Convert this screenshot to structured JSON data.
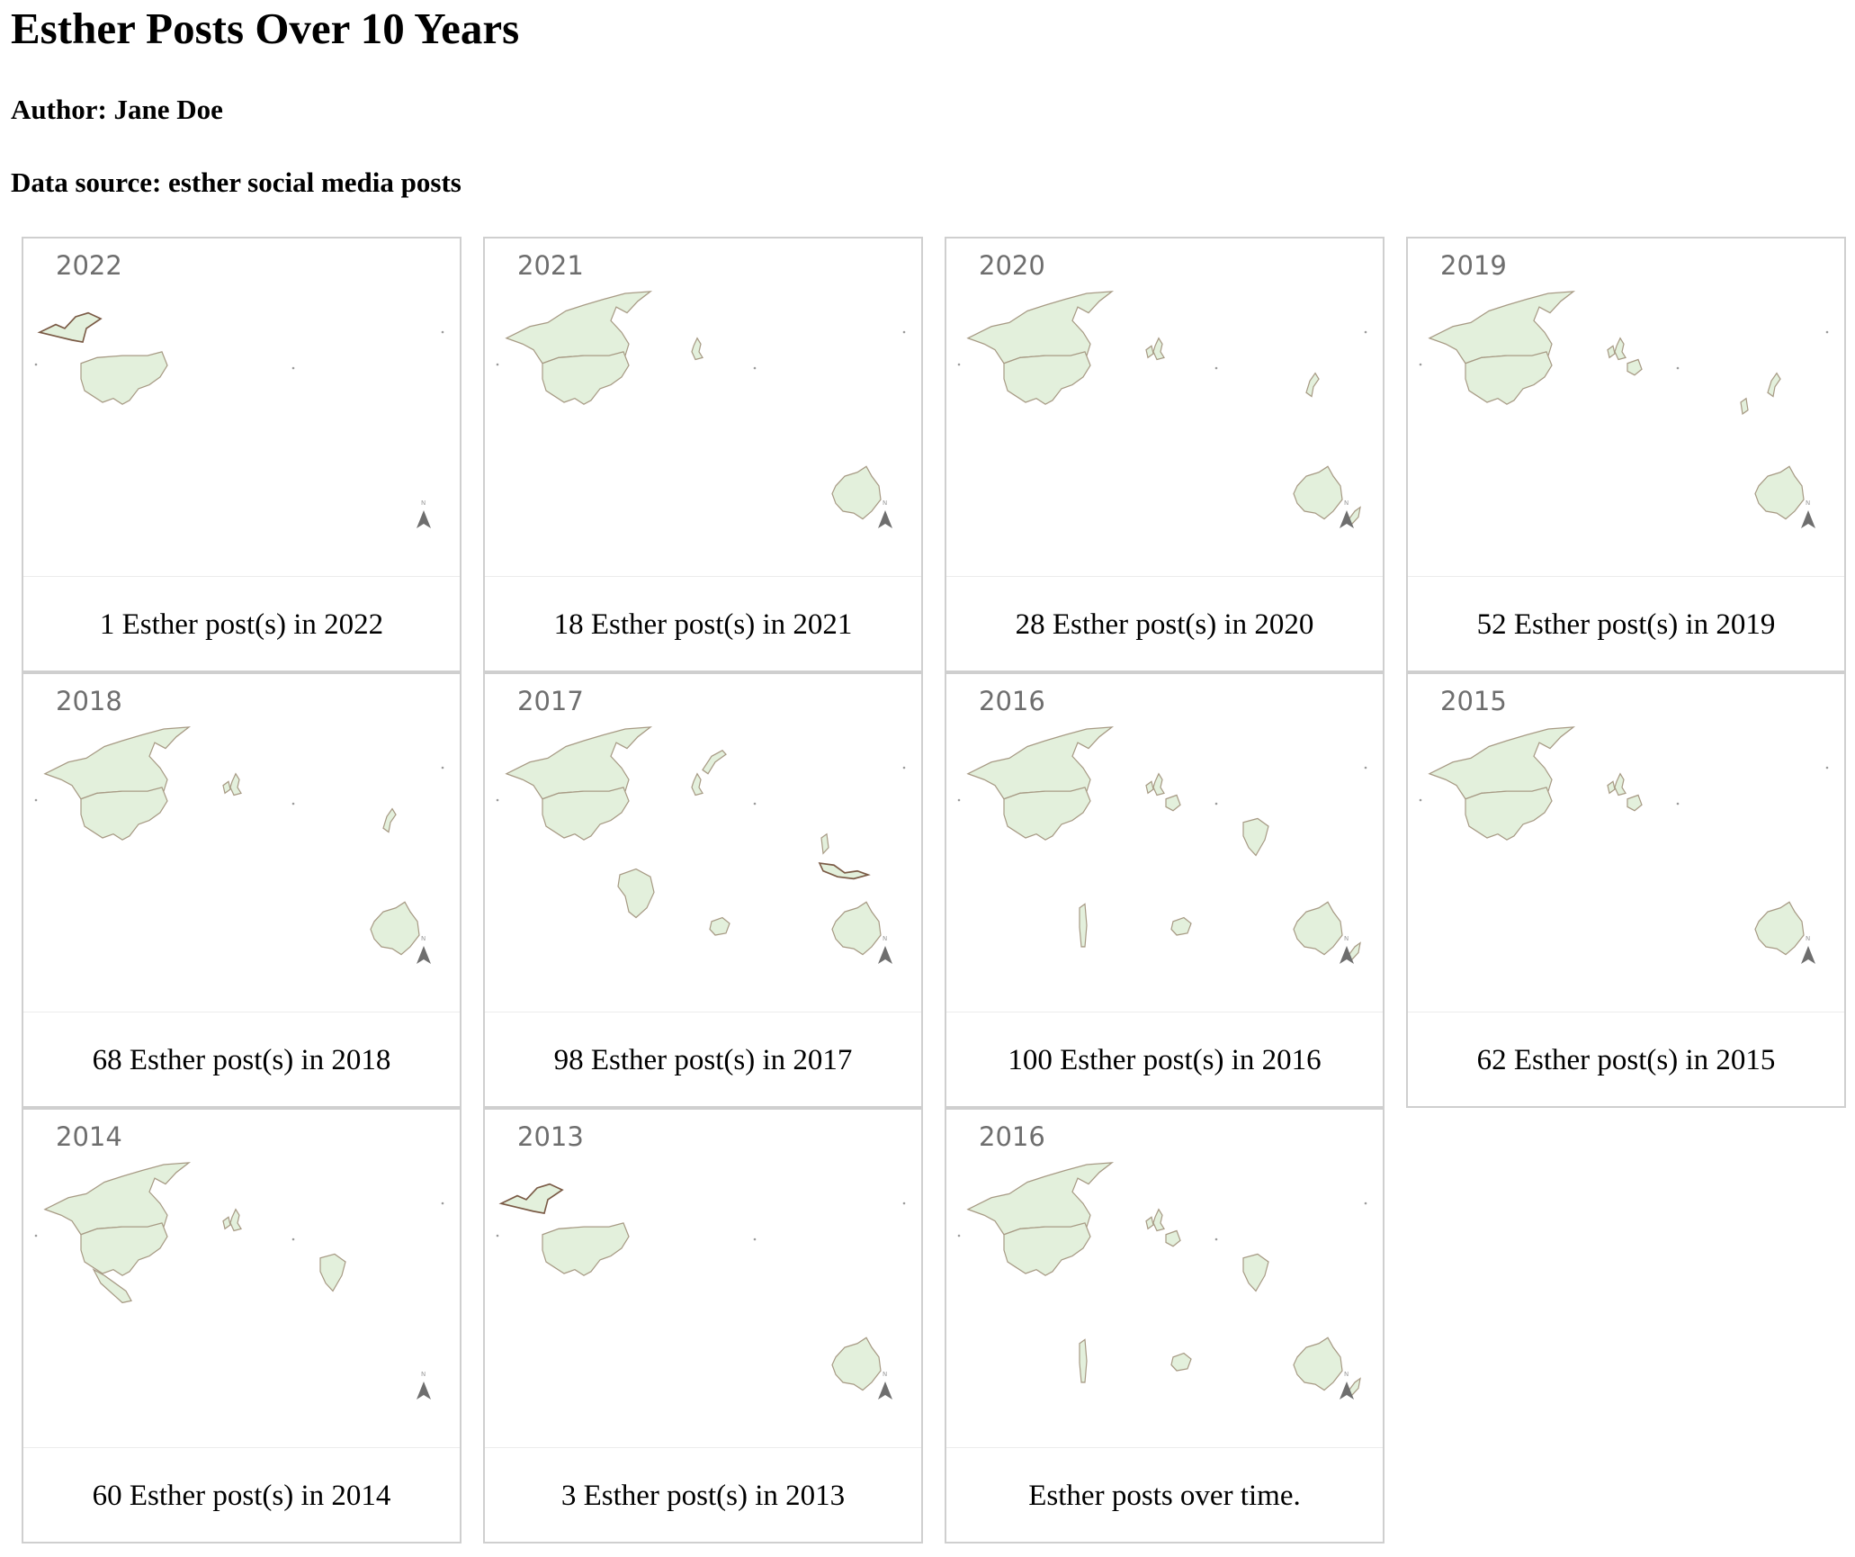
{
  "page": {
    "title": "Esther Posts Over 10 Years",
    "author": "Author: Jane Doe",
    "source": "Data source: esther social media posts"
  },
  "colors": {
    "land_fill": "#e3f0dc",
    "land_outline": "#a79a84",
    "coast_dark": "#7a5a45",
    "year_label": "#6e6e6e",
    "card_border": "#cfcfcf"
  },
  "north_arrow_label": "N",
  "cards": [
    {
      "year": "2022",
      "caption": "1 Esther post(s) in 2022",
      "posts": 1,
      "regions": [
        "Alaska",
        "United States"
      ]
    },
    {
      "year": "2021",
      "caption": "18 Esther post(s) in 2021",
      "posts": 18,
      "regions": [
        "Canada",
        "United States",
        "United Kingdom",
        "Australia"
      ]
    },
    {
      "year": "2020",
      "caption": "28 Esther post(s) in 2020",
      "posts": 28,
      "regions": [
        "Canada",
        "United States",
        "United Kingdom",
        "Ireland",
        "Japan",
        "Australia",
        "New Zealand"
      ]
    },
    {
      "year": "2019",
      "caption": "52 Esther post(s) in 2019",
      "posts": 52,
      "regions": [
        "Canada",
        "United States",
        "United Kingdom",
        "Ireland",
        "France",
        "Japan",
        "Philippines",
        "Australia"
      ]
    },
    {
      "year": "2018",
      "caption": "68 Esther post(s) in 2018",
      "posts": 68,
      "regions": [
        "Canada",
        "United States",
        "United Kingdom",
        "Ireland",
        "Japan",
        "Australia"
      ]
    },
    {
      "year": "2017",
      "caption": "98 Esther post(s) in 2017",
      "posts": 98,
      "regions": [
        "Canada",
        "United States",
        "United Kingdom",
        "Norway",
        "Brazil",
        "South Africa",
        "Thailand",
        "Indonesia",
        "Australia"
      ]
    },
    {
      "year": "2016",
      "caption": "100 Esther post(s) in 2016",
      "posts": 100,
      "regions": [
        "Canada",
        "United States",
        "United Kingdom",
        "Ireland",
        "France",
        "India",
        "Chile",
        "South Africa",
        "Australia",
        "New Zealand"
      ]
    },
    {
      "year": "2015",
      "caption": "62 Esther post(s) in 2015",
      "posts": 62,
      "regions": [
        "Canada",
        "United States",
        "United Kingdom",
        "Ireland",
        "France",
        "Australia"
      ]
    },
    {
      "year": "2014",
      "caption": "60 Esther post(s) in 2014",
      "posts": 60,
      "regions": [
        "Canada",
        "United States",
        "Mexico",
        "United Kingdom",
        "Ireland",
        "India"
      ]
    },
    {
      "year": "2013",
      "caption": "3 Esther post(s) in 2013",
      "posts": 3,
      "regions": [
        "Alaska",
        "United States",
        "Australia"
      ]
    },
    {
      "year": "2016",
      "caption": "Esther posts over time.",
      "posts": null,
      "regions": [
        "Canada",
        "United States",
        "United Kingdom",
        "Ireland",
        "France",
        "India",
        "Chile",
        "South Africa",
        "Australia",
        "New Zealand"
      ]
    }
  ]
}
